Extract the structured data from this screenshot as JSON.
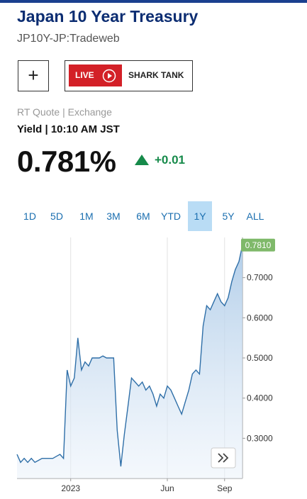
{
  "header": {
    "title": "Japan 10 Year Treasury",
    "subtitle": "JP10Y-JP:Tradeweb"
  },
  "buttons": {
    "add": "+",
    "live": "LIVE",
    "show": "SHARK TANK"
  },
  "quote": {
    "source": "RT Quote | Exchange",
    "time": "Yield | 10:10 AM JST",
    "price": "0.781%",
    "change": "+0.01"
  },
  "ranges": {
    "options": [
      "1D",
      "5D",
      "1M",
      "3M",
      "6M",
      "YTD",
      "1Y",
      "5Y",
      "ALL"
    ],
    "selected": "1Y"
  },
  "chart_data": {
    "type": "line",
    "categories": [
      null,
      null,
      null,
      null,
      null,
      null,
      null,
      null,
      null,
      null,
      null,
      null,
      null,
      null,
      null,
      "2023",
      null,
      null,
      null,
      null,
      null,
      null,
      null,
      null,
      null,
      null,
      null,
      null,
      null,
      null,
      null,
      null,
      null,
      null,
      null,
      null,
      null,
      null,
      null,
      null,
      null,
      null,
      "Jun",
      null,
      null,
      null,
      null,
      null,
      null,
      null,
      null,
      null,
      null,
      null,
      null,
      null,
      null,
      null,
      "Sep",
      null,
      null,
      null,
      null,
      null
    ],
    "values": [
      0.26,
      0.24,
      0.25,
      0.24,
      0.25,
      0.24,
      0.245,
      0.25,
      0.25,
      0.25,
      0.25,
      0.255,
      0.26,
      0.25,
      0.47,
      0.43,
      0.45,
      0.55,
      0.47,
      0.49,
      0.48,
      0.5,
      0.5,
      0.5,
      0.505,
      0.5,
      0.5,
      0.5,
      0.32,
      0.23,
      0.31,
      0.38,
      0.45,
      0.44,
      0.43,
      0.44,
      0.42,
      0.43,
      0.41,
      0.38,
      0.41,
      0.4,
      0.43,
      0.42,
      0.4,
      0.38,
      0.36,
      0.39,
      0.42,
      0.46,
      0.47,
      0.46,
      0.58,
      0.63,
      0.62,
      0.64,
      0.66,
      0.64,
      0.63,
      0.65,
      0.69,
      0.72,
      0.74,
      0.781
    ],
    "last_label": "0.7810",
    "color": "#2f6fa8",
    "ylim": [
      0.2,
      0.8
    ],
    "yticks": [
      {
        "value": 0.3,
        "label": "0.3000"
      },
      {
        "value": 0.4,
        "label": "0.4000"
      },
      {
        "value": 0.5,
        "label": "0.5000"
      },
      {
        "value": 0.6,
        "label": "0.6000"
      },
      {
        "value": 0.7,
        "label": "0.7000"
      }
    ]
  }
}
